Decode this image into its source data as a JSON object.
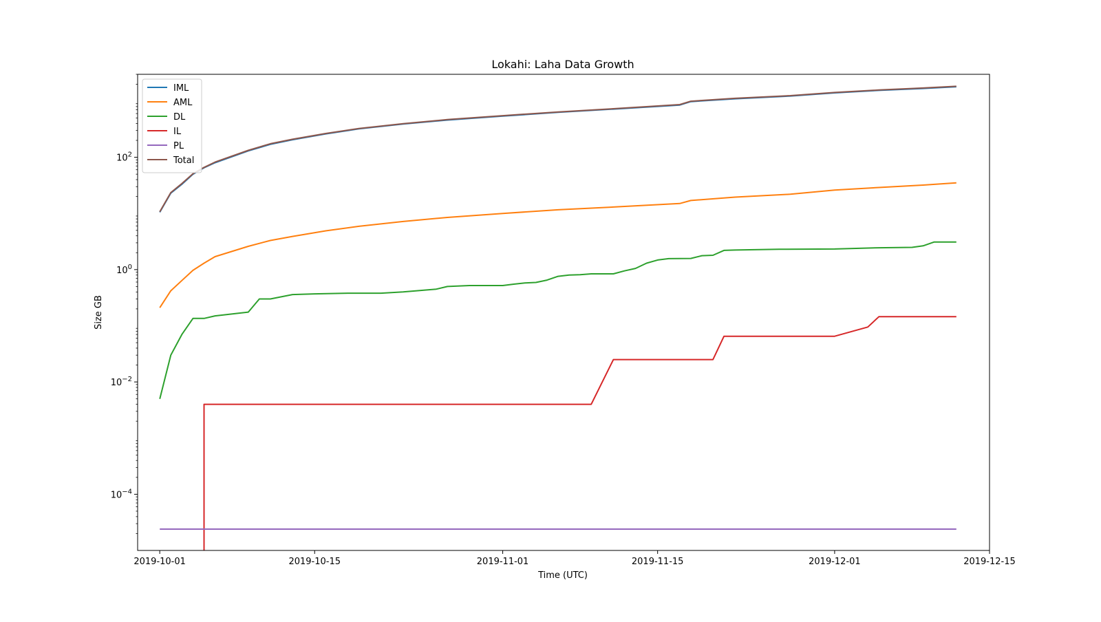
{
  "chart_data": {
    "type": "line",
    "title": "Lokahi: Laha Data Growth",
    "xlabel": "Time (UTC)",
    "ylabel": "Size GB",
    "yscale": "log",
    "xlim": [
      "2019-09-29",
      "2019-12-15"
    ],
    "ylim": [
      1e-05,
      3000
    ],
    "x_ticks": [
      "2019-10-01",
      "2019-10-15",
      "2019-11-01",
      "2019-11-15",
      "2019-12-01",
      "2019-12-15"
    ],
    "y_ticks": [
      {
        "base": "10",
        "exp": "−4",
        "value": 0.0001
      },
      {
        "base": "10",
        "exp": "−2",
        "value": 0.01
      },
      {
        "base": "10",
        "exp": "0",
        "value": 1
      },
      {
        "base": "10",
        "exp": "2",
        "value": 100
      }
    ],
    "legend_position": "top-left",
    "grid": false,
    "series": [
      {
        "name": "IML",
        "color": "#1f77b4",
        "x": [
          "2019-10-01",
          "2019-10-02",
          "2019-10-03",
          "2019-10-04",
          "2019-10-05",
          "2019-10-06",
          "2019-10-09",
          "2019-10-11",
          "2019-10-13",
          "2019-10-16",
          "2019-10-19",
          "2019-10-23",
          "2019-10-27",
          "2019-11-01",
          "2019-11-06",
          "2019-11-11",
          "2019-11-17",
          "2019-11-18",
          "2019-11-22",
          "2019-11-27",
          "2019-12-01",
          "2019-12-05",
          "2019-12-09",
          "2019-12-12"
        ],
        "y": [
          10.5,
          23,
          33,
          50,
          65,
          80,
          130,
          170,
          205,
          260,
          320,
          390,
          460,
          540,
          630,
          720,
          850,
          980,
          1100,
          1230,
          1400,
          1550,
          1680,
          1800
        ]
      },
      {
        "name": "AML",
        "color": "#ff7f0e",
        "x": [
          "2019-10-01",
          "2019-10-02",
          "2019-10-03",
          "2019-10-04",
          "2019-10-05",
          "2019-10-06",
          "2019-10-09",
          "2019-10-11",
          "2019-10-13",
          "2019-10-16",
          "2019-10-19",
          "2019-10-23",
          "2019-10-27",
          "2019-11-01",
          "2019-11-06",
          "2019-11-11",
          "2019-11-17",
          "2019-11-18",
          "2019-11-22",
          "2019-11-27",
          "2019-12-01",
          "2019-12-05",
          "2019-12-09",
          "2019-12-12"
        ],
        "y": [
          0.21,
          0.42,
          0.64,
          0.97,
          1.3,
          1.7,
          2.6,
          3.3,
          3.9,
          4.9,
          5.9,
          7.2,
          8.5,
          10,
          11.6,
          13,
          15,
          17,
          19.5,
          22,
          26,
          29,
          32,
          35
        ]
      },
      {
        "name": "DL",
        "color": "#2ca02c",
        "x": [
          "2019-10-01",
          "2019-10-02",
          "2019-10-03",
          "2019-10-04",
          "2019-10-05",
          "2019-10-06",
          "2019-10-09",
          "2019-10-10",
          "2019-10-11",
          "2019-10-13",
          "2019-10-15",
          "2019-10-18",
          "2019-10-21",
          "2019-10-23",
          "2019-10-26",
          "2019-10-27",
          "2019-10-29",
          "2019-11-01",
          "2019-11-02",
          "2019-11-03",
          "2019-11-04",
          "2019-11-05",
          "2019-11-06",
          "2019-11-07",
          "2019-11-08",
          "2019-11-09",
          "2019-11-11",
          "2019-11-12",
          "2019-11-13",
          "2019-11-14",
          "2019-11-15",
          "2019-11-16",
          "2019-11-18",
          "2019-11-19",
          "2019-11-20",
          "2019-11-21",
          "2019-11-22",
          "2019-11-26",
          "2019-12-01",
          "2019-12-05",
          "2019-12-08",
          "2019-12-09",
          "2019-12-10",
          "2019-12-12"
        ],
        "y": [
          0.005,
          0.03,
          0.07,
          0.135,
          0.135,
          0.15,
          0.175,
          0.3,
          0.3,
          0.36,
          0.37,
          0.38,
          0.38,
          0.4,
          0.45,
          0.5,
          0.52,
          0.52,
          0.55,
          0.58,
          0.59,
          0.65,
          0.76,
          0.8,
          0.81,
          0.84,
          0.84,
          0.95,
          1.05,
          1.3,
          1.48,
          1.57,
          1.58,
          1.77,
          1.8,
          2.2,
          2.23,
          2.3,
          2.33,
          2.45,
          2.49,
          2.65,
          3.1,
          3.1
        ]
      },
      {
        "name": "IL",
        "color": "#d62728",
        "x": [
          "2019-10-05",
          "2019-10-05",
          "2019-11-09",
          "2019-11-11",
          "2019-11-20",
          "2019-11-21",
          "2019-12-01",
          "2019-12-04",
          "2019-12-05",
          "2019-12-12"
        ],
        "y": [
          1e-05,
          0.004,
          0.004,
          0.025,
          0.025,
          0.065,
          0.065,
          0.095,
          0.145,
          0.145
        ]
      },
      {
        "name": "PL",
        "color": "#9467bd",
        "x": [
          "2019-10-01",
          "2019-12-12"
        ],
        "y": [
          2.4e-05,
          2.4e-05
        ]
      },
      {
        "name": "Total",
        "color": "#8c564b",
        "x": [
          "2019-10-01",
          "2019-10-02",
          "2019-10-03",
          "2019-10-04",
          "2019-10-05",
          "2019-10-06",
          "2019-10-09",
          "2019-10-11",
          "2019-10-13",
          "2019-10-16",
          "2019-10-19",
          "2019-10-23",
          "2019-10-27",
          "2019-11-01",
          "2019-11-06",
          "2019-11-11",
          "2019-11-17",
          "2019-11-18",
          "2019-11-22",
          "2019-11-27",
          "2019-12-01",
          "2019-12-05",
          "2019-12-09",
          "2019-12-12"
        ],
        "y": [
          10.7,
          23.5,
          34,
          51,
          66,
          82,
          133,
          174,
          209,
          265,
          326,
          397,
          469,
          550,
          642,
          733,
          866,
          997,
          1120,
          1252,
          1426,
          1579,
          1712,
          1835
        ]
      }
    ]
  }
}
